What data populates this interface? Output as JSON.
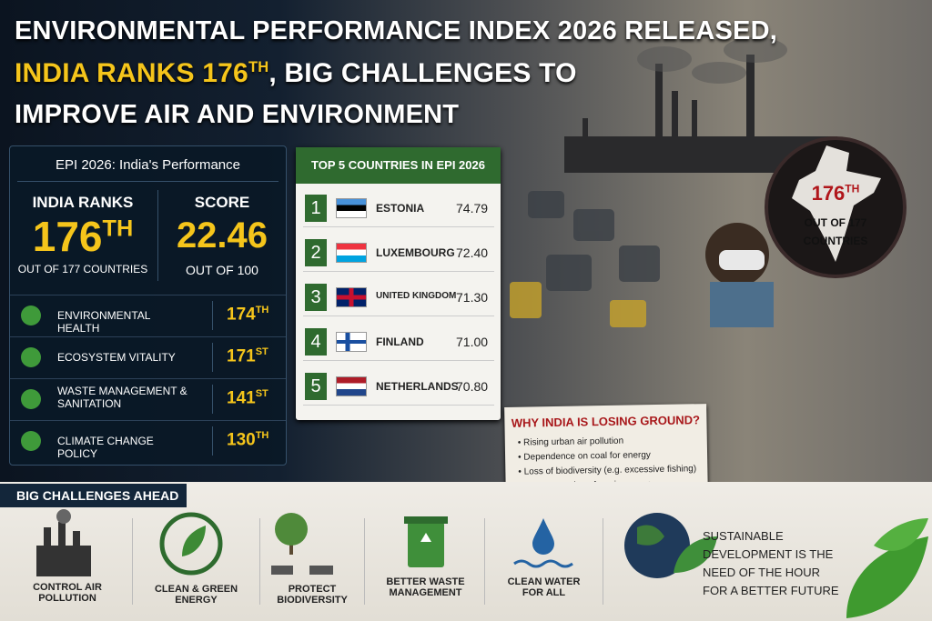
{
  "header": {
    "title_line_1": "ENVIRONMENTAL PERFORMANCE INDEX 2026 RELEASED,",
    "title_line_2_highlight": "INDIA RANKS 176",
    "title_line_2_suffix": "TH",
    "title_line_2_rest": ", BIG CHALLENGES TO",
    "title_line_3": "IMPROVE AIR AND ENVIRONMENT"
  },
  "performance": {
    "title": "EPI 2026: India's Performance",
    "rank_label": "INDIA RANKS",
    "rank": "176",
    "rank_suffix": "TH",
    "rank_note": "OUT OF 177 COUNTRIES",
    "score_label": "SCORE",
    "score": "22.46",
    "score_note": "OUT OF 100",
    "indicators": [
      {
        "name": "ENVIRONMENTAL HEALTH",
        "rank": "174",
        "suffix": "TH"
      },
      {
        "name": "ECOSYSTEM VITALITY",
        "rank": "171",
        "suffix": "ST"
      },
      {
        "name": "WASTE MANAGEMENT & SANITATION",
        "rank": "141",
        "suffix": "ST"
      },
      {
        "name": "CLIMATE CHANGE POLICY",
        "rank": "130",
        "suffix": "TH"
      }
    ]
  },
  "top5": {
    "title": "TOP 5 COUNTRIES IN EPI 2026",
    "rows": [
      {
        "rank": "1",
        "country": "ESTONIA",
        "score": "74.79"
      },
      {
        "rank": "2",
        "country": "LUXEMBOURG",
        "score": "72.40"
      },
      {
        "rank": "3",
        "country": "UNITED KINGDOM",
        "score": "71.30"
      },
      {
        "rank": "4",
        "country": "FINLAND",
        "score": "71.00"
      },
      {
        "rank": "5",
        "country": "NETHERLANDS",
        "score": "70.80"
      }
    ]
  },
  "badge": {
    "rank": "176",
    "suffix": "TH",
    "line_1": "OUT OF 177",
    "line_2": "COUNTRIES"
  },
  "why": {
    "title": "WHY INDIA IS LOSING GROUND?",
    "points": [
      "Rising urban air pollution",
      "Dependence on coal for energy",
      "Loss of biodiversity (e.g. excessive fishing)",
      "Poor protection of marine areas"
    ]
  },
  "challenges": {
    "title": "BIG CHALLENGES AHEAD",
    "items": [
      "CONTROL AIR POLLUTION",
      "CLEAN & GREEN ENERGY",
      "PROTECT BIODIVERSITY",
      "BETTER WASTE MANAGEMENT",
      "CLEAN WATER FOR ALL"
    ],
    "closing": "SUSTAINABLE DEVELOPMENT IS THE NEED OF THE HOUR FOR A BETTER FUTURE"
  }
}
